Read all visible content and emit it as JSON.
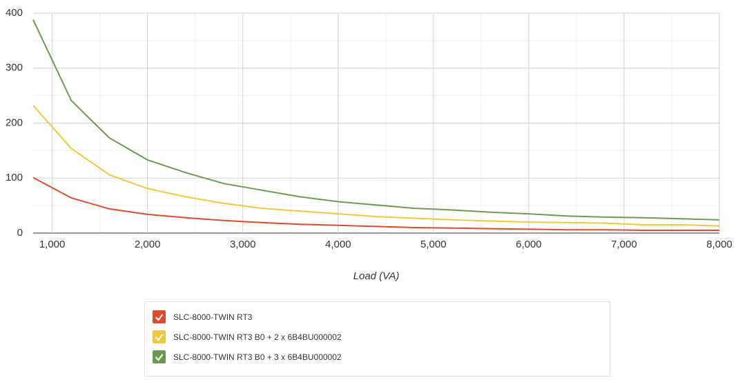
{
  "chart_data": {
    "type": "line",
    "x_label": "Load (VA)",
    "x": [
      800,
      1200,
      1600,
      2000,
      2400,
      2800,
      3200,
      3600,
      4000,
      4400,
      4800,
      5200,
      5600,
      6000,
      6400,
      6800,
      7200,
      7600,
      8000
    ],
    "series": [
      {
        "name": "SLC-8000-TWIN RT3",
        "color": "#e0492a",
        "values": [
          101,
          64,
          44,
          34,
          28,
          23,
          19,
          16,
          14,
          12,
          10,
          9,
          8,
          7,
          6,
          6,
          5,
          5,
          5
        ]
      },
      {
        "name": "SLC-8000-TWIN RT3 B0 + 2 x 6B4BU000002",
        "color": "#f0c83a",
        "values": [
          232,
          154,
          106,
          81,
          66,
          54,
          45,
          40,
          35,
          30,
          27,
          24,
          22,
          20,
          19,
          18,
          15,
          15,
          13
        ]
      },
      {
        "name": "SLC-8000-TWIN RT3 B0 + 3 x 6B4BU000002",
        "color": "#6a9a4f",
        "values": [
          388,
          241,
          173,
          133,
          110,
          90,
          78,
          66,
          57,
          51,
          45,
          42,
          38,
          35,
          31,
          29,
          28,
          26,
          24
        ]
      }
    ],
    "xlim": [
      800,
      8000
    ],
    "xticks": [
      {
        "value": 1000,
        "label": "1,000"
      },
      {
        "value": 2000,
        "label": "2,000"
      },
      {
        "value": 3000,
        "label": "3,000"
      },
      {
        "value": 4000,
        "label": "4,000"
      },
      {
        "value": 5000,
        "label": "5,000"
      },
      {
        "value": 6000,
        "label": "6,000"
      },
      {
        "value": 7000,
        "label": "7,000"
      },
      {
        "value": 8000,
        "label": "8,000"
      }
    ],
    "ylim": [
      0,
      400
    ],
    "yticks": [
      0,
      100,
      200,
      300,
      400
    ],
    "grid": true,
    "minor_grid": true,
    "legend": "bottom"
  }
}
